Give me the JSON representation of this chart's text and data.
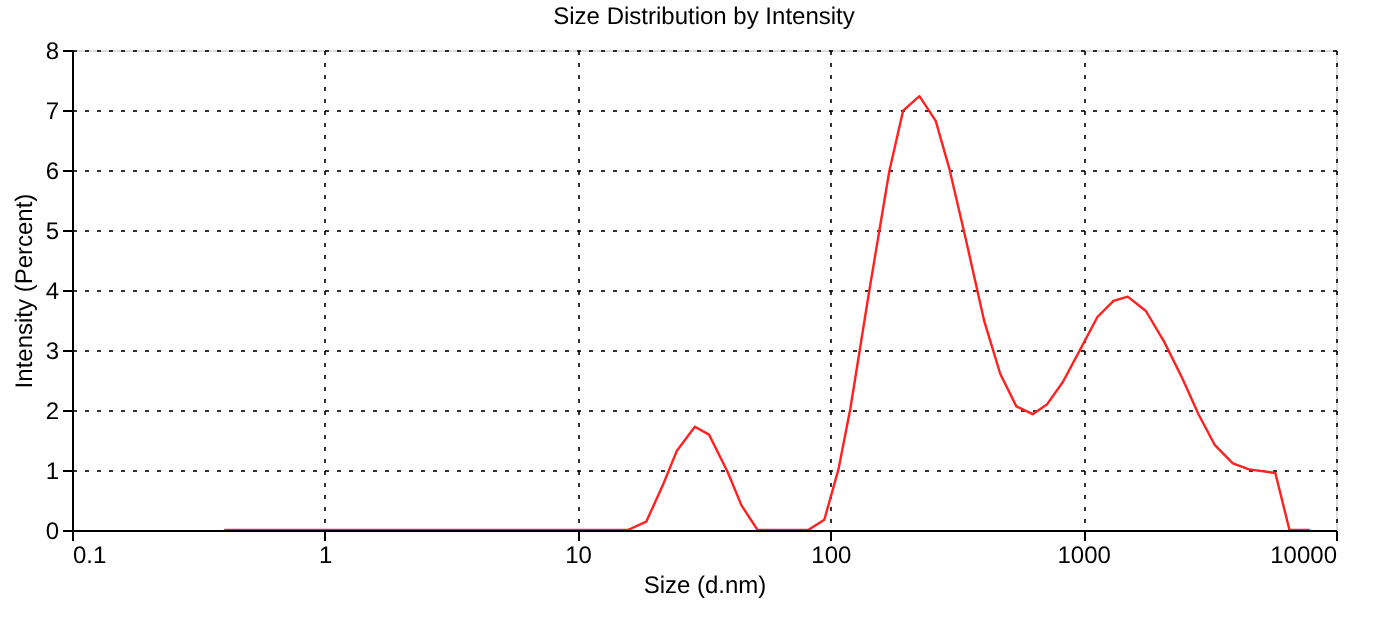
{
  "chart_data": {
    "type": "line",
    "title": "Size Distribution by Intensity",
    "xlabel": "Size (d.nm)",
    "ylabel": "Intensity (Percent)",
    "log": "x",
    "grid": true,
    "line_style": "solid",
    "marker": "none",
    "xlim": [
      0.1,
      10000
    ],
    "xticks": [
      0.1,
      1,
      10,
      100,
      1000,
      10000
    ],
    "ylim": [
      0,
      8
    ],
    "yticks": [
      0,
      1,
      2,
      3,
      4,
      5,
      6,
      7,
      8
    ],
    "series": [
      {
        "color": "#ff2020",
        "x": [
          0.4,
          15.8,
          18.7,
          21.7,
          24.7,
          29.1,
          33.1,
          39.1,
          44.5,
          51.5,
          81.7,
          94.6,
          107.6,
          120,
          142,
          171,
          194,
          225,
          261,
          296,
          344,
          406,
          470,
          544,
          631,
          718,
          832,
          982,
          1138,
          1318,
          1500,
          1770,
          2089,
          2466,
          2858,
          3311,
          3908,
          4529,
          5754,
          6546,
          7870
        ],
        "values": [
          0,
          0,
          0.14,
          0.74,
          1.32,
          1.72,
          1.59,
          0.98,
          0.41,
          0,
          0,
          0.17,
          1.01,
          2.03,
          3.95,
          5.98,
          6.99,
          7.23,
          6.82,
          6.01,
          4.83,
          3.48,
          2.6,
          2.06,
          1.93,
          2.09,
          2.47,
          3.04,
          3.55,
          3.82,
          3.89,
          3.65,
          3.14,
          2.53,
          1.93,
          1.42,
          1.11,
          1.01,
          0.95,
          0,
          0
        ]
      }
    ]
  }
}
